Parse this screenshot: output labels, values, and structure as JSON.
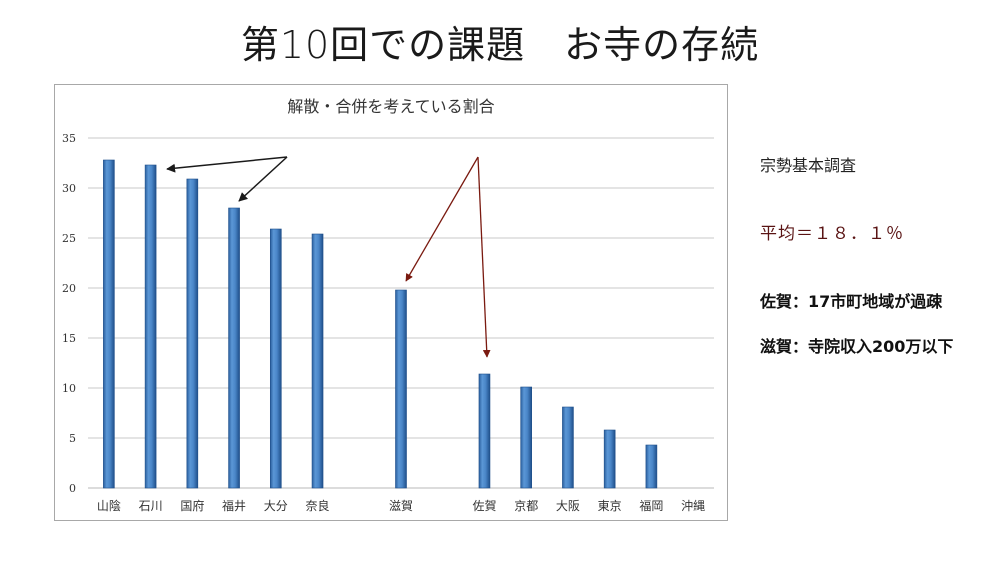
{
  "slide": {
    "title": "第10回での課題　お寺の存続"
  },
  "notes": {
    "source": "宗勢基本調査",
    "average": "平均＝１８．１％",
    "saga": "佐賀：17市町地域が過疎",
    "shiga": "滋賀：寺院収入200万以下"
  },
  "colors": {
    "bar": "#4a86c8",
    "bar_edge": "#1f4f8a",
    "grid": "#c8c8c8",
    "arrow_black": "#1a1a1a",
    "arrow_red": "#7a1a10",
    "avg_text": "#5a1414"
  },
  "chart_data": {
    "type": "bar",
    "title": "解散・合併を考えている割合",
    "xlabel": "",
    "ylabel": "",
    "ylim": [
      0,
      35
    ],
    "yticks": [
      0,
      5,
      10,
      15,
      20,
      25,
      30,
      35
    ],
    "grid": true,
    "legend": null,
    "categories": [
      "山陰",
      "石川",
      "国府",
      "福井",
      "大分",
      "奈良",
      "",
      "滋賀",
      "",
      "佐賀",
      "京都",
      "大阪",
      "東京",
      "福岡",
      "沖縄"
    ],
    "values": [
      32.8,
      32.3,
      30.9,
      28.0,
      25.9,
      25.4,
      null,
      19.8,
      null,
      11.4,
      10.1,
      8.1,
      5.8,
      4.3,
      0
    ],
    "annotations": [
      {
        "type": "arrow",
        "color": "black",
        "from": "annotation point",
        "to": "石川"
      },
      {
        "type": "arrow",
        "color": "black",
        "from": "annotation point",
        "to": "福井"
      },
      {
        "type": "arrow",
        "color": "darkred",
        "from": "annotation point",
        "to": "滋賀"
      },
      {
        "type": "arrow",
        "color": "darkred",
        "from": "annotation point",
        "to": "佐賀"
      }
    ]
  }
}
